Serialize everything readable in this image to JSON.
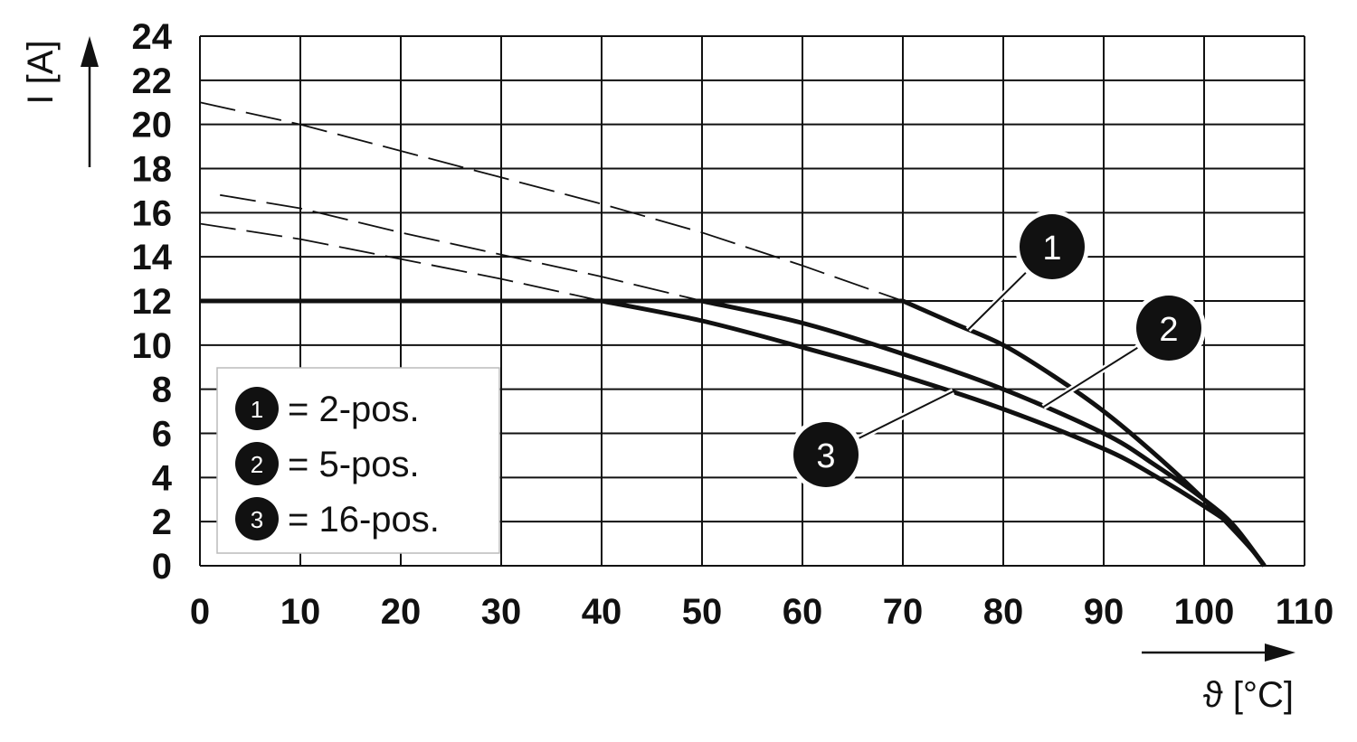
{
  "chart_data": {
    "type": "line",
    "xlabel": "ϑ [°C]",
    "ylabel": "I [A]",
    "xlim": [
      0,
      110
    ],
    "ylim": [
      0,
      24
    ],
    "x_ticks": [
      "0",
      "10",
      "20",
      "30",
      "40",
      "50",
      "60",
      "70",
      "80",
      "90",
      "100",
      "110"
    ],
    "y_ticks": [
      "0",
      "2",
      "4",
      "6",
      "8",
      "10",
      "12",
      "14",
      "16",
      "18",
      "20",
      "22",
      "24"
    ],
    "grid": true,
    "legend_position": "bottom-left",
    "series": [
      {
        "id": "1",
        "name": "= 2-pos.",
        "badge": "1",
        "solid": [
          [
            0,
            12
          ],
          [
            70,
            12
          ],
          [
            75,
            11
          ],
          [
            80,
            10
          ],
          [
            85,
            8.6
          ],
          [
            90,
            7.0
          ],
          [
            95,
            5.1
          ],
          [
            100,
            3.0
          ],
          [
            103,
            1.6
          ],
          [
            105,
            0.6
          ],
          [
            106,
            0
          ]
        ],
        "dashed": [
          [
            0,
            21
          ],
          [
            10,
            20
          ],
          [
            20,
            18.8
          ],
          [
            30,
            17.6
          ],
          [
            40,
            16.4
          ],
          [
            50,
            15.1
          ],
          [
            60,
            13.6
          ],
          [
            70,
            12
          ]
        ]
      },
      {
        "id": "2",
        "name": "= 5-pos.",
        "badge": "2",
        "solid": [
          [
            0,
            12
          ],
          [
            50,
            12
          ],
          [
            60,
            11
          ],
          [
            70,
            9.6
          ],
          [
            80,
            8.0
          ],
          [
            90,
            6.0
          ],
          [
            95,
            4.6
          ],
          [
            100,
            3.0
          ],
          [
            103,
            1.8
          ],
          [
            106,
            0
          ]
        ],
        "dashed": [
          [
            2,
            16.8
          ],
          [
            10,
            16.2
          ],
          [
            20,
            15.1
          ],
          [
            30,
            14.1
          ],
          [
            40,
            13.1
          ],
          [
            50,
            12
          ]
        ]
      },
      {
        "id": "3",
        "name": "= 16-pos.",
        "badge": "3",
        "solid": [
          [
            0,
            12
          ],
          [
            40,
            12
          ],
          [
            50,
            11.1
          ],
          [
            60,
            9.9
          ],
          [
            70,
            8.6
          ],
          [
            80,
            7.1
          ],
          [
            90,
            5.3
          ],
          [
            95,
            4.1
          ],
          [
            100,
            2.7
          ],
          [
            103,
            1.7
          ],
          [
            106,
            0
          ]
        ],
        "dashed": [
          [
            0,
            15.5
          ],
          [
            10,
            14.8
          ],
          [
            20,
            13.9
          ],
          [
            30,
            13.0
          ],
          [
            38,
            12.2
          ],
          [
            40,
            12
          ]
        ]
      }
    ],
    "callouts": [
      {
        "badge": "1",
        "anchor": [
          76.5,
          10.7
        ]
      },
      {
        "badge": "2",
        "anchor": [
          84,
          7.2
        ]
      },
      {
        "badge": "3",
        "anchor": [
          75,
          7.9
        ]
      }
    ]
  }
}
